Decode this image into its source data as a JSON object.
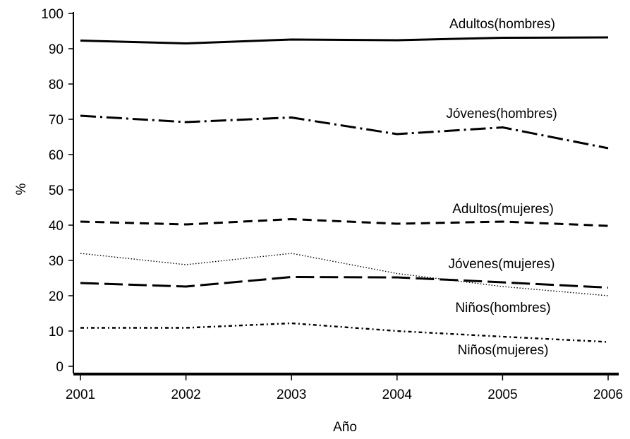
{
  "chart_data": {
    "type": "line",
    "title": "",
    "xlabel": "Año",
    "ylabel": "%",
    "x": [
      2001,
      2002,
      2003,
      2004,
      2005,
      2006
    ],
    "xlim": [
      2001,
      2006
    ],
    "ylim": [
      0,
      100
    ],
    "yticks": [
      0,
      10,
      20,
      30,
      40,
      50,
      60,
      70,
      80,
      90,
      100
    ],
    "grid": false,
    "legend": "none (series labeled inline next to lines)",
    "series": [
      {
        "name": "Adultos(hombres)",
        "style": "solid",
        "color": "#000000",
        "values": [
          92.3,
          91.5,
          92.6,
          92.4,
          93.1,
          93.2
        ]
      },
      {
        "name": "Jóvenes(hombres)",
        "style": "dash-dot",
        "color": "#000000",
        "values": [
          71.0,
          69.2,
          70.5,
          65.8,
          67.7,
          61.8
        ]
      },
      {
        "name": "Adultos(mujeres)",
        "style": "dashed",
        "color": "#000000",
        "values": [
          41.0,
          40.2,
          41.7,
          40.4,
          41.0,
          39.8
        ]
      },
      {
        "name": "Jóvenes(mujeres)",
        "style": "long-dash",
        "color": "#000000",
        "values": [
          23.6,
          22.6,
          25.3,
          25.2,
          23.8,
          22.3
        ]
      },
      {
        "name": "Niños(hombres)",
        "style": "dotted",
        "color": "#000000",
        "values": [
          32.0,
          28.8,
          32.0,
          26.3,
          22.6,
          20.0
        ]
      },
      {
        "name": "Niños(mujeres)",
        "style": "dash-dot-dot",
        "color": "#000000",
        "values": [
          10.9,
          10.9,
          12.2,
          10.0,
          8.4,
          6.9
        ]
      }
    ]
  }
}
